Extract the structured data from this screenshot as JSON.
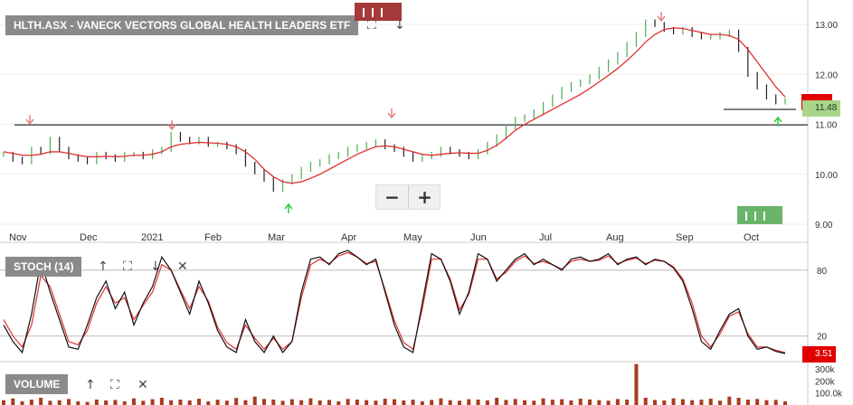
{
  "main_panel": {
    "title": "HLTH.ASX - VANECK VECTORS GLOBAL HEALTH LEADERS ETF",
    "controls": {
      "zoom_out": "−",
      "zoom_in": "+"
    },
    "last_price_label": "11.48",
    "upper_tag_label": "",
    "support_line": 10.99,
    "short_line": 11.3
  },
  "stoch_panel": {
    "label": "STOCH (14)",
    "last_value_label": "3.51"
  },
  "volume_panel": {
    "label": "VOLUME"
  },
  "colors": {
    "price_up": "#4caf50",
    "price_down": "#222222",
    "ma": "#e03030",
    "stoch_k": "#111111",
    "stoch_d": "#e03030",
    "volume": "#a83c1e",
    "buy_arrow": "#2ecc40",
    "sell_arrow": "#e88080"
  },
  "chart_data": [
    {
      "type": "line",
      "name": "price",
      "x_ticks": [
        "Nov",
        "Dec",
        "2021",
        "Feb",
        "Mar",
        "Apr",
        "May",
        "Jun",
        "Jul",
        "Aug",
        "Sep",
        "Oct"
      ],
      "y_ticks": [
        "13.00",
        "12.00",
        "11.00",
        "10.00",
        "9.00"
      ],
      "ylim": [
        9.0,
        13.4
      ],
      "series": [
        {
          "values": [
            10.4,
            10.3,
            10.25,
            10.5,
            10.45,
            10.7,
            10.5,
            10.35,
            10.3,
            10.25,
            10.4,
            10.35,
            10.3,
            10.4,
            10.4,
            10.35,
            10.45,
            10.5,
            10.8,
            10.7,
            10.65,
            10.7,
            10.6,
            10.6,
            10.55,
            10.45,
            10.2,
            10.05,
            9.9,
            9.7,
            9.85,
            9.95,
            10.1,
            10.2,
            10.25,
            10.35,
            10.4,
            10.5,
            10.55,
            10.6,
            10.65,
            10.55,
            10.5,
            10.4,
            10.3,
            10.35,
            10.4,
            10.5,
            10.45,
            10.4,
            10.35,
            10.45,
            10.6,
            10.75,
            10.95,
            11.1,
            11.15,
            11.25,
            11.4,
            11.55,
            11.7,
            11.8,
            11.85,
            11.95,
            12.1,
            12.25,
            12.4,
            12.6,
            12.8,
            13.05,
            13.0,
            12.9,
            12.85,
            12.9,
            12.8,
            12.75,
            12.75,
            12.8,
            12.85,
            12.5,
            12.0,
            11.75,
            11.55,
            11.45,
            11.48
          ]
        },
        {
          "values": [
            10.45,
            10.42,
            10.38,
            10.38,
            10.4,
            10.45,
            10.45,
            10.42,
            10.38,
            10.35,
            10.35,
            10.36,
            10.35,
            10.36,
            10.38,
            10.38,
            10.4,
            10.45,
            10.55,
            10.6,
            10.62,
            10.64,
            10.63,
            10.62,
            10.6,
            10.55,
            10.45,
            10.3,
            10.1,
            9.95,
            9.85,
            9.82,
            9.85,
            9.92,
            10.0,
            10.1,
            10.2,
            10.3,
            10.4,
            10.48,
            10.55,
            10.57,
            10.55,
            10.5,
            10.45,
            10.4,
            10.38,
            10.4,
            10.42,
            10.43,
            10.42,
            10.42,
            10.48,
            10.58,
            10.72,
            10.88,
            11.0,
            11.1,
            11.2,
            11.3,
            11.4,
            11.5,
            11.6,
            11.72,
            11.85,
            11.98,
            12.12,
            12.28,
            12.45,
            12.65,
            12.8,
            12.9,
            12.93,
            12.92,
            12.88,
            12.84,
            12.8,
            12.8,
            12.78,
            12.7,
            12.5,
            12.25,
            12.0,
            11.75,
            11.55
          ]
        }
      ]
    },
    {
      "type": "line",
      "name": "stochastic",
      "y_ticks": [
        "80",
        "20"
      ],
      "ylim": [
        0,
        100
      ],
      "series": [
        {
          "values": [
            30,
            15,
            5,
            40,
            88,
            60,
            35,
            10,
            8,
            30,
            55,
            70,
            45,
            60,
            30,
            50,
            65,
            92,
            80,
            60,
            40,
            70,
            50,
            25,
            10,
            5,
            35,
            15,
            5,
            20,
            5,
            15,
            60,
            90,
            92,
            85,
            95,
            98,
            92,
            85,
            90,
            60,
            30,
            10,
            5,
            50,
            95,
            90,
            70,
            40,
            60,
            95,
            90,
            70,
            80,
            90,
            95,
            85,
            90,
            85,
            80,
            90,
            92,
            88,
            90,
            95,
            85,
            90,
            92,
            85,
            90,
            88,
            82,
            70,
            45,
            15,
            8,
            25,
            40,
            45,
            20,
            8,
            10,
            6,
            4
          ]
        },
        {
          "values": [
            35,
            20,
            10,
            30,
            75,
            65,
            40,
            15,
            12,
            25,
            50,
            65,
            50,
            55,
            35,
            48,
            60,
            85,
            80,
            62,
            45,
            65,
            52,
            28,
            14,
            8,
            30,
            18,
            8,
            18,
            8,
            15,
            55,
            85,
            90,
            86,
            93,
            96,
            92,
            86,
            88,
            62,
            34,
            14,
            8,
            45,
            90,
            90,
            72,
            44,
            58,
            90,
            90,
            72,
            78,
            88,
            93,
            86,
            88,
            85,
            81,
            88,
            90,
            88,
            89,
            93,
            86,
            89,
            91,
            86,
            89,
            88,
            83,
            72,
            50,
            20,
            10,
            22,
            38,
            42,
            22,
            10,
            10,
            7,
            5
          ]
        }
      ]
    },
    {
      "type": "bar",
      "name": "volume",
      "y_ticks": [
        "300k",
        "200k",
        "100.0k"
      ],
      "ylim": [
        0,
        360000
      ],
      "values": [
        40000,
        55000,
        30000,
        45000,
        60000,
        35000,
        40000,
        50000,
        30000,
        25000,
        45000,
        38000,
        42000,
        30000,
        55000,
        35000,
        48000,
        60000,
        40000,
        45000,
        38000,
        52000,
        30000,
        44000,
        36000,
        58000,
        40000,
        70000,
        50000,
        45000,
        35000,
        48000,
        40000,
        55000,
        38000,
        42000,
        30000,
        50000,
        45000,
        40000,
        36000,
        52000,
        48000,
        38000,
        44000,
        30000,
        42000,
        55000,
        40000,
        36000,
        48000,
        45000,
        38000,
        60000,
        42000,
        50000,
        40000,
        36000,
        55000,
        44000,
        48000,
        38000,
        52000,
        46000,
        40000,
        36000,
        50000,
        45000,
        340000,
        60000,
        42000,
        38000,
        55000,
        48000,
        40000,
        44000,
        52000,
        36000,
        70000,
        60000,
        45000,
        50000,
        40000,
        42000,
        30000
      ]
    }
  ]
}
